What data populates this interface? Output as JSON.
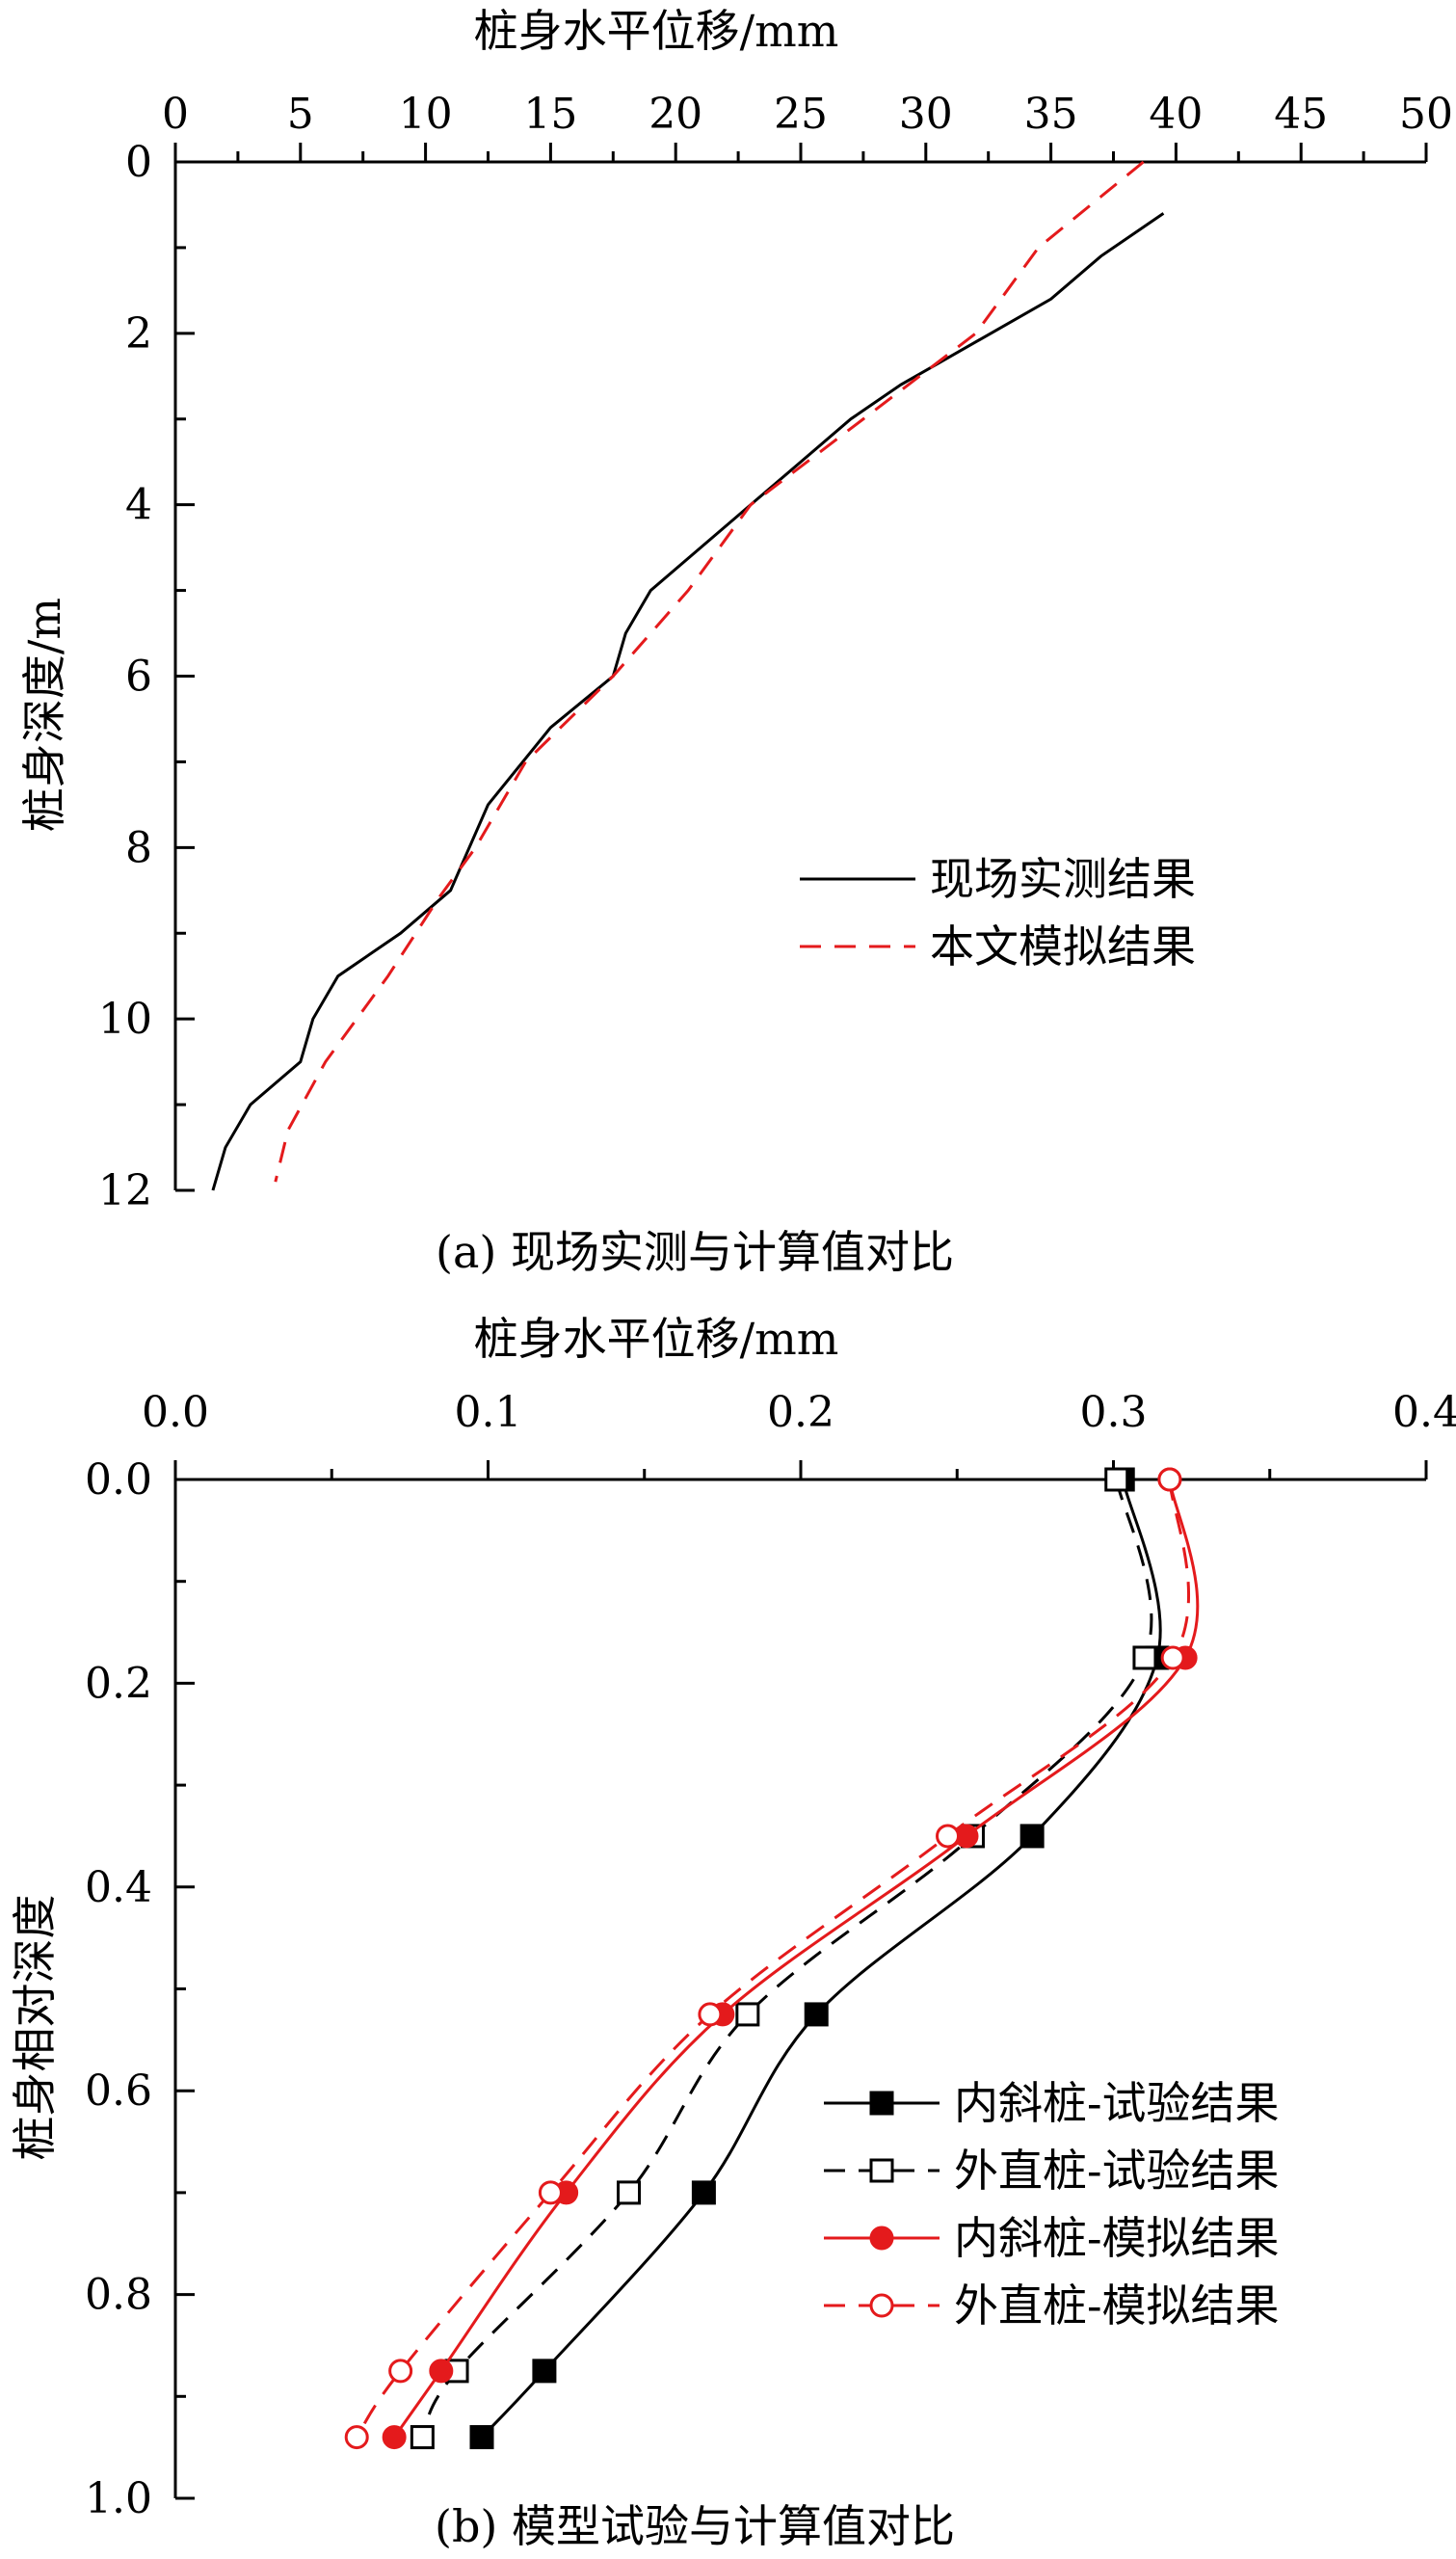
{
  "chart_data": [
    {
      "type": "line",
      "panel_caption": "(a) 现场实测与计算值对比",
      "xlabel": "桩身水平位移/mm",
      "ylabel": "桩身深度/m",
      "xlim": [
        0,
        50
      ],
      "ylim": [
        0,
        12
      ],
      "x_ticks": [
        "0",
        "5",
        "10",
        "15",
        "20",
        "25",
        "30",
        "35",
        "40",
        "45",
        "50"
      ],
      "y_ticks": [
        "0",
        "2",
        "4",
        "6",
        "8",
        "10",
        "12"
      ],
      "x_axis_position": "top",
      "y_axis_inverted": true,
      "legend_position": "center-right",
      "series": [
        {
          "name": "现场实测结果",
          "color": "#000000",
          "dash": "solid",
          "marker": "none",
          "points": [
            [
              39.5,
              0.6
            ],
            [
              37.0,
              1.1
            ],
            [
              35.0,
              1.6
            ],
            [
              32.0,
              2.1
            ],
            [
              29.0,
              2.6
            ],
            [
              27.0,
              3.0
            ],
            [
              25.0,
              3.5
            ],
            [
              23.0,
              4.0
            ],
            [
              21.0,
              4.5
            ],
            [
              19.0,
              5.0
            ],
            [
              18.0,
              5.5
            ],
            [
              17.5,
              6.0
            ],
            [
              15.0,
              6.6
            ],
            [
              12.5,
              7.5
            ],
            [
              11.0,
              8.5
            ],
            [
              9.0,
              9.0
            ],
            [
              6.5,
              9.5
            ],
            [
              5.5,
              10.0
            ],
            [
              5.0,
              10.5
            ],
            [
              3.0,
              11.0
            ],
            [
              2.0,
              11.5
            ],
            [
              1.5,
              12.0
            ]
          ]
        },
        {
          "name": "本文模拟结果",
          "color": "#e41a1c",
          "dash": "dash",
          "marker": "none",
          "points": [
            [
              38.7,
              0.0
            ],
            [
              34.5,
              1.0
            ],
            [
              32.0,
              2.0
            ],
            [
              27.5,
              3.0
            ],
            [
              23.0,
              4.0
            ],
            [
              20.5,
              5.0
            ],
            [
              17.5,
              6.0
            ],
            [
              14.0,
              7.0
            ],
            [
              12.0,
              8.0
            ],
            [
              10.5,
              8.6
            ],
            [
              8.5,
              9.5
            ],
            [
              6.0,
              10.5
            ],
            [
              4.5,
              11.3
            ],
            [
              4.0,
              11.9
            ]
          ]
        }
      ]
    },
    {
      "type": "line",
      "panel_caption": "(b) 模型试验与计算值对比",
      "xlabel": "桩身水平位移/mm",
      "ylabel": "桩身相对深度",
      "xlim": [
        0,
        0.4
      ],
      "ylim": [
        0,
        1
      ],
      "x_ticks": [
        "0.0",
        "0.1",
        "0.2",
        "0.3",
        "0.4"
      ],
      "y_ticks": [
        "0.0",
        "0.2",
        "0.4",
        "0.6",
        "0.8",
        "1.0"
      ],
      "x_axis_position": "top",
      "y_axis_inverted": true,
      "legend_position": "bottom-right",
      "series": [
        {
          "name": "内斜桩-试验结果",
          "color": "#000000",
          "dash": "solid",
          "marker": "square-filled",
          "points": [
            [
              0.303,
              0.0
            ],
            [
              0.314,
              0.175
            ],
            [
              0.274,
              0.35
            ],
            [
              0.205,
              0.525
            ],
            [
              0.169,
              0.7
            ],
            [
              0.118,
              0.875
            ],
            [
              0.098,
              0.94
            ]
          ]
        },
        {
          "name": "外直桩-试验结果",
          "color": "#000000",
          "dash": "dash",
          "marker": "square-open",
          "points": [
            [
              0.301,
              0.0
            ],
            [
              0.31,
              0.175
            ],
            [
              0.255,
              0.35
            ],
            [
              0.183,
              0.525
            ],
            [
              0.145,
              0.7
            ],
            [
              0.09,
              0.875
            ],
            [
              0.079,
              0.94
            ]
          ]
        },
        {
          "name": "内斜桩-模拟结果",
          "color": "#e41a1c",
          "dash": "solid",
          "marker": "circle-filled",
          "points": [
            [
              0.318,
              0.0
            ],
            [
              0.323,
              0.175
            ],
            [
              0.253,
              0.35
            ],
            [
              0.175,
              0.525
            ],
            [
              0.125,
              0.7
            ],
            [
              0.085,
              0.875
            ],
            [
              0.07,
              0.94
            ]
          ]
        },
        {
          "name": "外直桩-模拟结果",
          "color": "#e41a1c",
          "dash": "dash",
          "marker": "circle-open",
          "points": [
            [
              0.318,
              0.0
            ],
            [
              0.319,
              0.175
            ],
            [
              0.247,
              0.35
            ],
            [
              0.171,
              0.525
            ],
            [
              0.12,
              0.7
            ],
            [
              0.072,
              0.875
            ],
            [
              0.058,
              0.94
            ]
          ]
        }
      ]
    }
  ]
}
